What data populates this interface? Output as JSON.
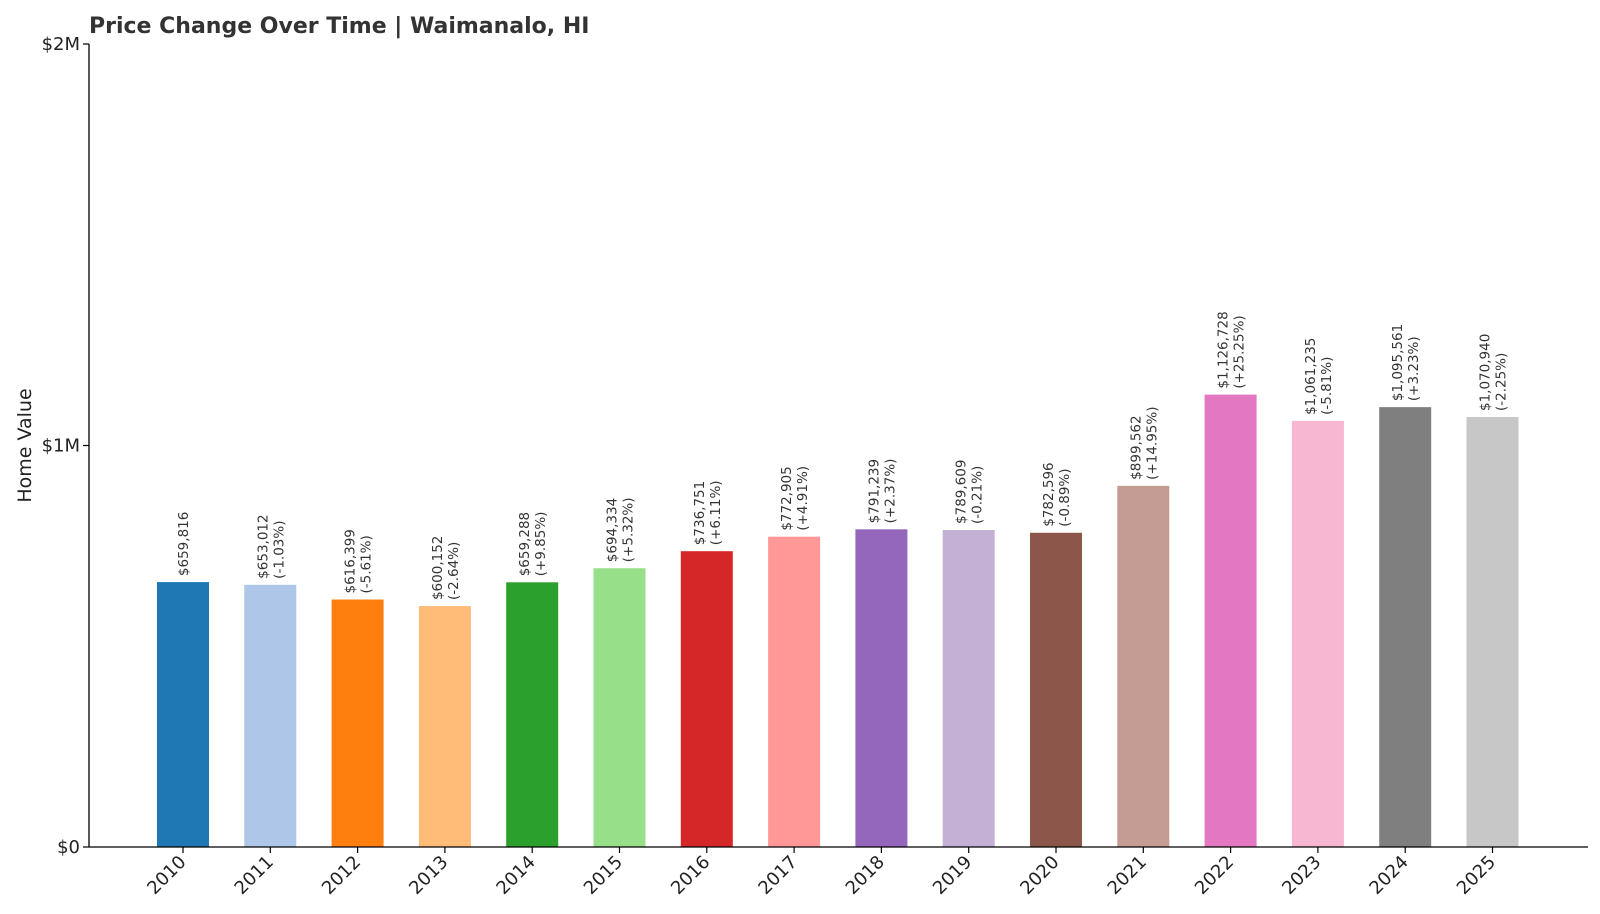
{
  "chart_data": {
    "type": "bar",
    "title": "Price Change Over Time | Waimanalo, HI",
    "xlabel": "",
    "ylabel": "Home Value",
    "ylim": [
      0,
      2000000
    ],
    "yticks": [
      {
        "value": 0,
        "label": "$0"
      },
      {
        "value": 1000000,
        "label": "$1M"
      },
      {
        "value": 2000000,
        "label": "$2M"
      }
    ],
    "grid": false,
    "legend": "none",
    "categories": [
      "2010",
      "2011",
      "2012",
      "2013",
      "2014",
      "2015",
      "2016",
      "2017",
      "2018",
      "2019",
      "2020",
      "2021",
      "2022",
      "2023",
      "2024",
      "2025"
    ],
    "values": [
      659816,
      653012,
      616399,
      600152,
      659288,
      694334,
      736751,
      772905,
      791239,
      789609,
      782596,
      899562,
      1126728,
      1061235,
      1095561,
      1070940
    ],
    "value_labels": [
      "$659,816",
      "$653,012",
      "$616,399",
      "$600,152",
      "$659,288",
      "$694,334",
      "$736,751",
      "$772,905",
      "$791,239",
      "$789,609",
      "$782,596",
      "$899,562",
      "$1,126,728",
      "$1,061,235",
      "$1,095,561",
      "$1,070,940"
    ],
    "change_labels": [
      "",
      "(-1.03%)",
      "(-5.61%)",
      "(-2.64%)",
      "(+9.85%)",
      "(+5.32%)",
      "(+6.11%)",
      "(+4.91%)",
      "(+2.37%)",
      "(-0.21%)",
      "(-0.89%)",
      "(+14.95%)",
      "(+25.25%)",
      "(-5.81%)",
      "(+3.23%)",
      "(-2.25%)"
    ],
    "colors": [
      "#1f77b4",
      "#aec7e8",
      "#ff7f0e",
      "#ffbb78",
      "#2ca02c",
      "#98df8a",
      "#d62728",
      "#ff9896",
      "#9467bd",
      "#c5b0d5",
      "#8c564b",
      "#c49c94",
      "#e377c2",
      "#f7b6d2",
      "#7f7f7f",
      "#c7c7c7"
    ]
  }
}
